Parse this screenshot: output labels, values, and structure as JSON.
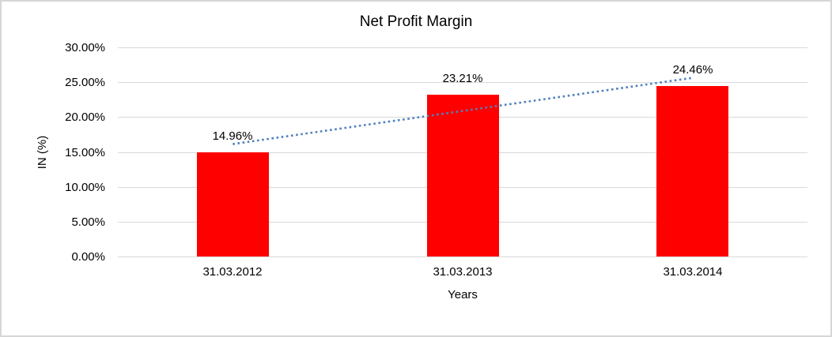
{
  "window": {
    "background": "#FFFFFF",
    "frame_border_color": "#D6D6D6"
  },
  "chart_data": {
    "type": "bar",
    "title": "Net Profit Margin",
    "xlabel": "Years",
    "ylabel": "IN (%)",
    "categories": [
      "31.03.2012",
      "31.03.2013",
      "31.03.2014"
    ],
    "series": [
      {
        "name": "Net Profit Margin",
        "values": [
          14.96,
          23.21,
          24.46
        ],
        "labels": [
          "14.96%",
          "23.21%",
          "24.46%"
        ]
      }
    ],
    "trendline": {
      "type": "linear",
      "style": "dotted",
      "color": "#4F81BD"
    },
    "ylim": [
      0,
      30
    ],
    "y_tick_step": 5,
    "y_ticks": [
      "0.00%",
      "5.00%",
      "10.00%",
      "15.00%",
      "20.00%",
      "25.00%",
      "30.00%"
    ],
    "grid": true,
    "legend_position": "none",
    "bar_color": "#FF0000",
    "gridline_color": "#D9D9D9",
    "text_color": "#000000"
  }
}
